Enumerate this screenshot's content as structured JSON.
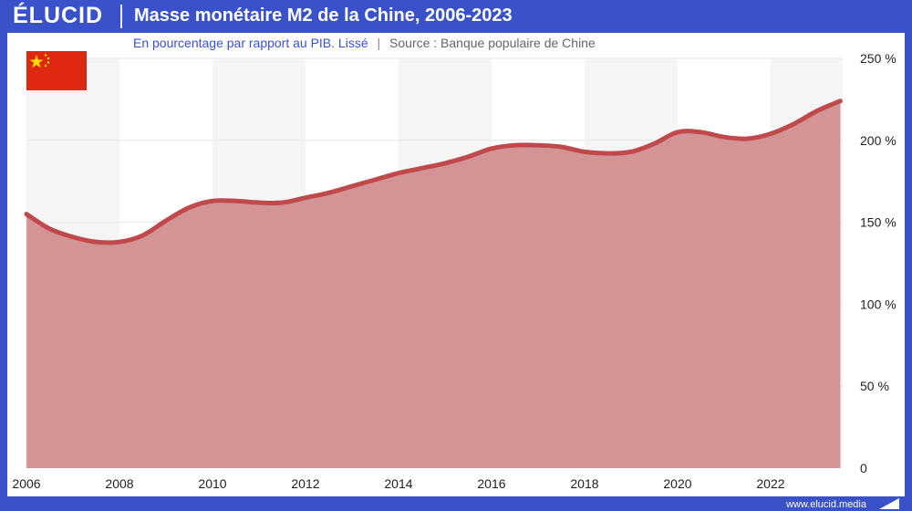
{
  "header": {
    "logo": "ÉLUCID",
    "title": "Masse monétaire M2 de la Chine, 2006-2023",
    "subtitle": "En pourcentage par rapport au PIB. Lissé",
    "separator": "|",
    "source": "Source : Banque populaire de Chine"
  },
  "footer": {
    "site": "www.elucid.media"
  },
  "colors": {
    "brand": "#3a52c9",
    "line": "#c0494c",
    "area": "#d49496",
    "band": "#f5f5f5",
    "flag_red": "#de2910",
    "flag_star": "#ffde00"
  },
  "icons": {
    "flag": "china-flag-icon",
    "footer_mark": "elucid-mark-icon"
  },
  "chart_data": {
    "type": "area",
    "title": "Masse monétaire M2 de la Chine, 2006-2023",
    "subtitle": "En pourcentage par rapport au PIB. Lissé",
    "xlabel": "",
    "ylabel": "",
    "xlim": [
      2006,
      2023.55
    ],
    "ylim": [
      0,
      250
    ],
    "x_ticks": [
      "2006",
      "2008",
      "2010",
      "2012",
      "2014",
      "2016",
      "2018",
      "2020",
      "2022"
    ],
    "y_ticks": [
      "0",
      "50 %",
      "100 %",
      "150 %",
      "200 %",
      "250 %"
    ],
    "y_tick_values": [
      0,
      50,
      100,
      150,
      200,
      250
    ],
    "grid": true,
    "alternating_bands": true,
    "series": [
      {
        "x": [
          2006,
          2006.5,
          2007,
          2007.5,
          2008,
          2008.5,
          2009,
          2009.5,
          2010,
          2010.5,
          2011,
          2011.5,
          2012,
          2012.5,
          2013,
          2013.5,
          2014,
          2014.5,
          2015,
          2015.5,
          2016,
          2016.5,
          2017,
          2017.5,
          2018,
          2018.5,
          2019,
          2019.5,
          2020,
          2020.5,
          2021,
          2021.5,
          2022,
          2022.5,
          2023,
          2023.5
        ],
        "values": [
          155,
          146,
          141,
          138,
          138,
          142,
          151,
          159,
          163,
          163,
          162,
          162,
          165,
          168,
          172,
          176,
          180,
          183,
          186,
          190,
          195,
          197,
          197,
          196,
          193,
          192,
          193,
          198,
          205,
          205,
          202,
          201,
          204,
          210,
          218,
          224
        ]
      }
    ]
  }
}
